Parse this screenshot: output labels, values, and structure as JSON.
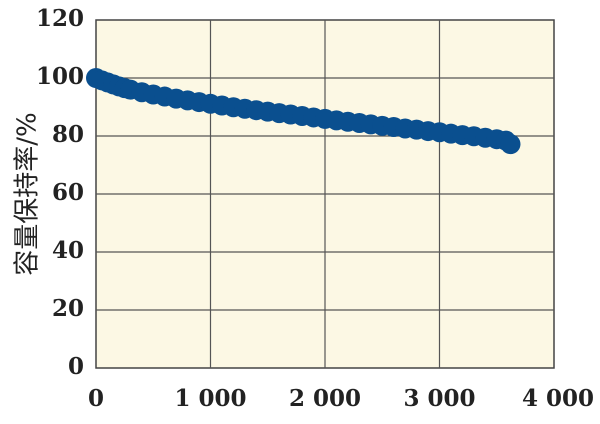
{
  "chart_data": {
    "type": "scatter",
    "title": "",
    "xlabel": "",
    "ylabel": "容量保持率/%",
    "xlim": [
      0,
      4000
    ],
    "ylim": [
      0,
      120
    ],
    "x_ticks": [
      0,
      1000,
      2000,
      3000,
      4000
    ],
    "x_tick_labels": [
      "0",
      "1 000",
      "2 000",
      "3 000",
      "4 000"
    ],
    "y_ticks": [
      0,
      20,
      40,
      60,
      80,
      100,
      120
    ],
    "y_tick_labels": [
      "0",
      "20",
      "40",
      "60",
      "80",
      "100",
      "120"
    ],
    "grid": true,
    "colors": {
      "plot_background": "#fcf8e4",
      "marker": "#0a4f8f",
      "grid": "#555555"
    },
    "series": [
      {
        "points": [
          [
            0,
            100
          ],
          [
            50,
            99.2
          ],
          [
            100,
            98.5
          ],
          [
            150,
            97.8
          ],
          [
            200,
            97.1
          ],
          [
            250,
            96.5
          ],
          [
            300,
            96.0
          ],
          [
            400,
            95.1
          ],
          [
            500,
            94.3
          ],
          [
            600,
            93.6
          ],
          [
            700,
            92.9
          ],
          [
            800,
            92.3
          ],
          [
            900,
            91.7
          ],
          [
            1000,
            91.1
          ],
          [
            1100,
            90.5
          ],
          [
            1200,
            89.9
          ],
          [
            1300,
            89.4
          ],
          [
            1400,
            88.9
          ],
          [
            1500,
            88.4
          ],
          [
            1600,
            87.9
          ],
          [
            1700,
            87.4
          ],
          [
            1800,
            86.9
          ],
          [
            1900,
            86.4
          ],
          [
            2000,
            85.9
          ],
          [
            2100,
            85.4
          ],
          [
            2200,
            84.9
          ],
          [
            2300,
            84.5
          ],
          [
            2400,
            84.0
          ],
          [
            2500,
            83.5
          ],
          [
            2600,
            83.1
          ],
          [
            2700,
            82.6
          ],
          [
            2800,
            82.2
          ],
          [
            2900,
            81.7
          ],
          [
            3000,
            81.3
          ],
          [
            3100,
            80.8
          ],
          [
            3200,
            80.3
          ],
          [
            3300,
            79.9
          ],
          [
            3400,
            79.4
          ],
          [
            3500,
            78.9
          ],
          [
            3580,
            78.4
          ],
          [
            3620,
            77.2
          ]
        ]
      }
    ]
  }
}
